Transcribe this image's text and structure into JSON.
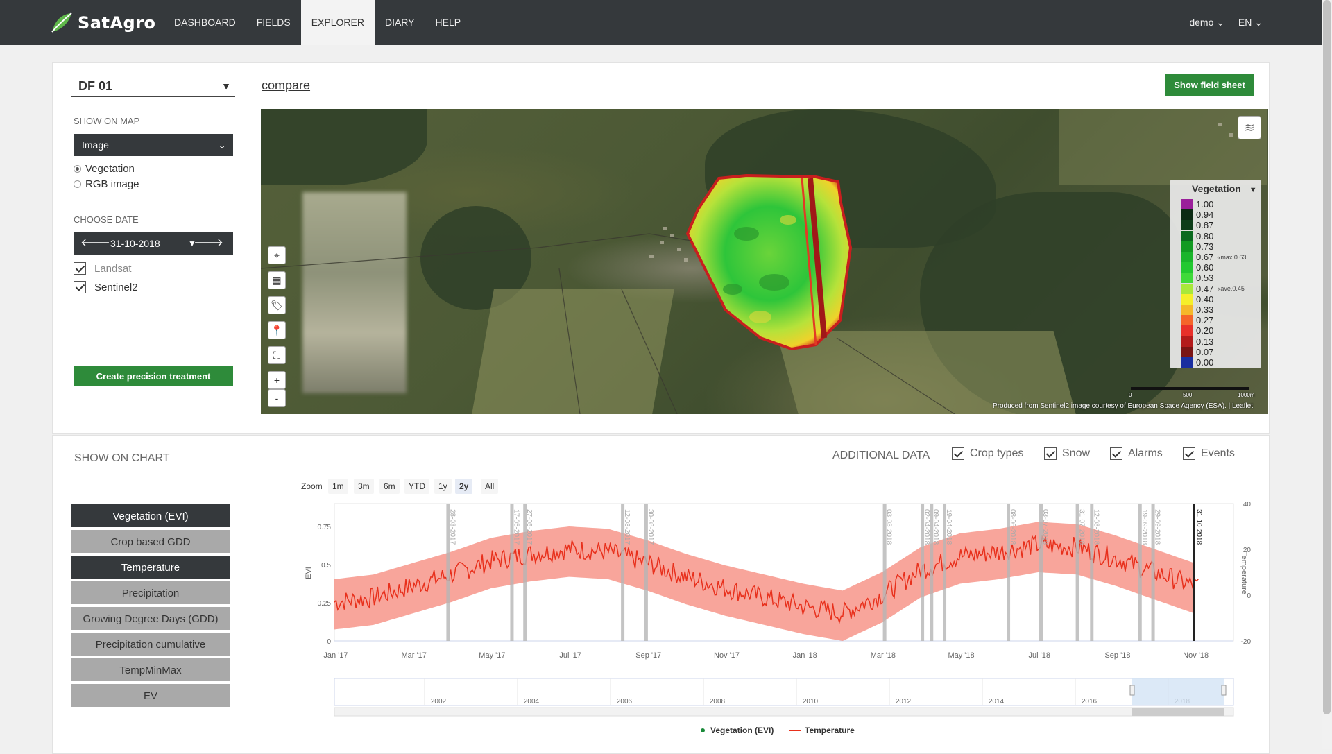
{
  "nav": {
    "brand": "SatAgro",
    "items": [
      "DASHBOARD",
      "FIELDS",
      "EXPLORER",
      "DIARY",
      "HELP"
    ],
    "active": "EXPLORER",
    "user": "demo",
    "lang": "EN"
  },
  "sidebar": {
    "field": "DF 01",
    "show_on_map_label": "SHOW ON MAP",
    "map_layer": "Image",
    "radio_vegetation": "Vegetation",
    "radio_rgb": "RGB image",
    "choose_date_label": "CHOOSE DATE",
    "date": "31-10-2018",
    "check_landsat": "Landsat",
    "check_sentinel": "Sentinel2",
    "create_btn": "Create precision treatment"
  },
  "header": {
    "compare": "compare",
    "show_sheet": "Show field sheet"
  },
  "map": {
    "legend_title": "Vegetation",
    "legend": [
      {
        "label": "1.00",
        "color": "#9a1f9a"
      },
      {
        "label": "0.94",
        "color": "#0c2a14"
      },
      {
        "label": "0.87",
        "color": "#0d3d18"
      },
      {
        "label": "0.80",
        "color": "#0a6a1e"
      },
      {
        "label": "0.73",
        "color": "#129a22"
      },
      {
        "label": "0.67",
        "color": "#1ab52b",
        "note": "max.0.63"
      },
      {
        "label": "0.60",
        "color": "#22c930"
      },
      {
        "label": "0.53",
        "color": "#3fda3a"
      },
      {
        "label": "0.47",
        "color": "#a8e83a",
        "note": "ave.0.45"
      },
      {
        "label": "0.40",
        "color": "#f5ef2a"
      },
      {
        "label": "0.33",
        "color": "#f5b82a"
      },
      {
        "label": "0.27",
        "color": "#f5652a"
      },
      {
        "label": "0.20",
        "color": "#e8302a"
      },
      {
        "label": "0.13",
        "color": "#b31b1b"
      },
      {
        "label": "0.07",
        "color": "#7a1414"
      },
      {
        "label": "0.00",
        "color": "#1a2ea0"
      }
    ],
    "scale_labels": [
      "0",
      "500",
      "1000m"
    ],
    "attribution": "Produced from Sentinel2 image courtesy of European Space Agency (ESA). | Leaflet",
    "controls": [
      "locate-icon",
      "grid-icon",
      "tags-icon",
      "marker-icon",
      "fullscreen-icon"
    ],
    "zoom_in": "+",
    "zoom_out": "-"
  },
  "chart_panel": {
    "show_on_chart_label": "SHOW ON CHART",
    "buttons": [
      {
        "label": "Vegetation (EVI)",
        "active": true
      },
      {
        "label": "Crop based GDD",
        "active": false
      },
      {
        "label": "Temperature",
        "active": true
      },
      {
        "label": "Precipitation",
        "active": false
      },
      {
        "label": "Growing Degree Days (GDD)",
        "active": false
      },
      {
        "label": "Precipitation cumulative",
        "active": false
      },
      {
        "label": "TempMinMax",
        "active": false
      },
      {
        "label": "EV",
        "active": false
      }
    ],
    "additional_label": "ADDITIONAL DATA",
    "additional": [
      "Crop types",
      "Snow",
      "Alarms",
      "Events"
    ],
    "zoom_label": "Zoom",
    "zoom_options": [
      "1m",
      "3m",
      "6m",
      "YTD",
      "1y",
      "2y",
      "All"
    ],
    "zoom_selected": "2y",
    "legend_evi": "Vegetation (EVI)",
    "legend_temp": "Temperature"
  },
  "chart_data": {
    "type": "line",
    "x_tick_labels": [
      "Jan '17",
      "Mar '17",
      "May '17",
      "Jul '17",
      "Sep '17",
      "Nov '17",
      "Jan '18",
      "Mar '18",
      "May '18",
      "Jul '18",
      "Sep '18",
      "Nov '18"
    ],
    "ylabel_left": "EVI",
    "ylim_left": [
      0,
      0.9
    ],
    "yticks_left": [
      "0",
      "0.25",
      "0.5",
      "0.75"
    ],
    "ylabel_right": "Temperature",
    "ylim_right": [
      -20,
      40
    ],
    "yticks_right": [
      "-20",
      "0",
      "20",
      "40"
    ],
    "image_dates": [
      "28-03-2017",
      "17-05-2017",
      "27-05-2017",
      "12-08-2017",
      "30-08-2017",
      "03-03-2018",
      "02-04-2018",
      "09-04-2018",
      "19-04-2018",
      "08-06-2018",
      "03-07-2018",
      "31-07-2018",
      "12-08-2018",
      "19-09-2018",
      "29-09-2018",
      "31-10-2018"
    ],
    "selected_date": "31-10-2018",
    "series": [
      {
        "name": "Temperature",
        "color": "#e8301c",
        "monthly_mean": [
          -3,
          -1,
          4,
          9,
          15,
          18,
          20,
          19,
          14,
          8,
          3,
          -1,
          -5,
          -8,
          0,
          11,
          17,
          19,
          22,
          21,
          16,
          10,
          4
        ],
        "band": {
          "color": "#f7958a",
          "low_offset": -12,
          "high_offset": 10
        }
      }
    ],
    "navigator_ticks": [
      "2002",
      "2004",
      "2006",
      "2008",
      "2010",
      "2012",
      "2014",
      "2016",
      "2018"
    ]
  }
}
